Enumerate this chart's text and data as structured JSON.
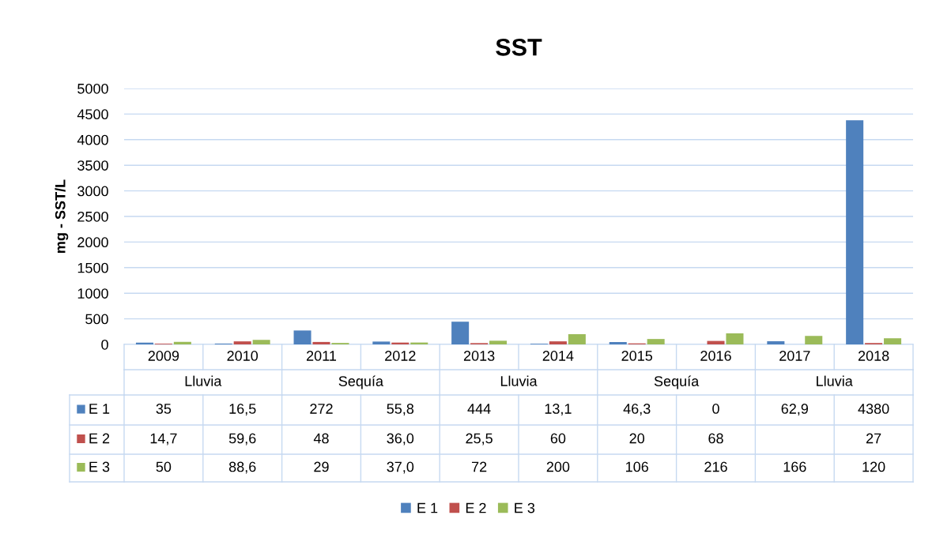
{
  "chart_data": {
    "type": "bar",
    "title": "SST",
    "ylabel": "mg - SST/L",
    "categories": [
      "2009",
      "2010",
      "2011",
      "2012",
      "2013",
      "2014",
      "2015",
      "2016",
      "2017",
      "2018"
    ],
    "annotations": [
      "Lluvia",
      "Sequía",
      "Lluvia",
      "Sequía",
      "Lluvia"
    ],
    "series": [
      {
        "name": "E 1",
        "color": "#4f81bd",
        "values": [
          35,
          16.5,
          272,
          55.8,
          444,
          13.1,
          46.3,
          0,
          62.9,
          4380
        ],
        "value_labels": [
          "35",
          "16,5",
          "272",
          "55,8",
          "444",
          "13,1",
          "46,3",
          "0",
          "62,9",
          "4380"
        ]
      },
      {
        "name": "E 2",
        "color": "#c0504d",
        "values": [
          14.7,
          59.6,
          48,
          36.0,
          25.5,
          60,
          20,
          68,
          null,
          27
        ],
        "value_labels": [
          "14,7",
          "59,6",
          "48",
          "36,0",
          "25,5",
          "60",
          "20",
          "68",
          null,
          "27"
        ]
      },
      {
        "name": "E 3",
        "color": "#9bbb59",
        "values": [
          50,
          88.6,
          29,
          37.0,
          72,
          200,
          106,
          216,
          166,
          120
        ],
        "value_labels": [
          "50",
          "88,6",
          "29",
          "37,0",
          "72",
          "200",
          "106",
          "216",
          "166",
          "120"
        ]
      }
    ],
    "ylim": [
      0,
      5000
    ],
    "yticks": [
      0,
      500,
      1000,
      1500,
      2000,
      2500,
      3000,
      3500,
      4000,
      4500,
      5000
    ],
    "grid": "y",
    "legend": "bottom"
  }
}
